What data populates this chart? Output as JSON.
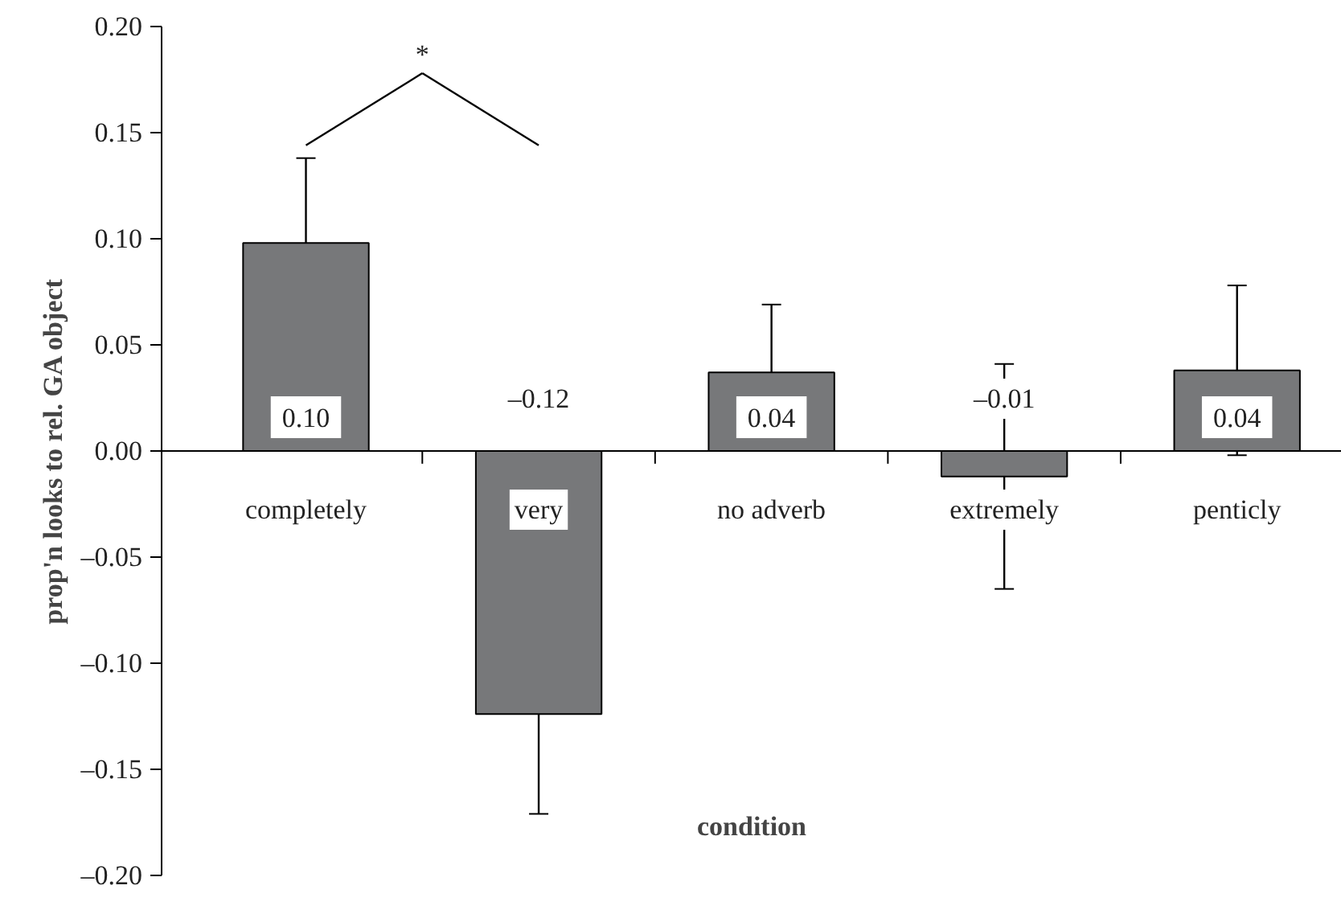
{
  "chart_data": {
    "type": "bar",
    "xlabel": "condition",
    "ylabel": "prop'n looks to rel. GA object",
    "categories": [
      "completely",
      "very",
      "no adverb",
      "extremely",
      "penticly"
    ],
    "values": [
      0.098,
      -0.124,
      0.037,
      -0.012,
      0.038
    ],
    "errors": [
      0.04,
      0.047,
      0.032,
      0.053,
      0.04
    ],
    "value_labels": [
      "0.10",
      "–0.12",
      "0.04",
      "–0.01",
      "0.04"
    ],
    "color": "#77787a",
    "ylim": [
      -0.2,
      0.2
    ],
    "yticks": [
      {
        "value": -0.2,
        "label": "–0.20"
      },
      {
        "value": -0.15,
        "label": "–0.15"
      },
      {
        "value": -0.1,
        "label": "–0.10"
      },
      {
        "value": -0.05,
        "label": "–0.05"
      },
      {
        "value": 0,
        "label": "0.00"
      },
      {
        "value": 0.05,
        "label": "0.05"
      },
      {
        "value": 0.1,
        "label": "0.10"
      },
      {
        "value": 0.15,
        "label": "0.15"
      },
      {
        "value": 0.2,
        "label": "0.20"
      }
    ],
    "annotations": [
      "*"
    ],
    "grid": false
  }
}
